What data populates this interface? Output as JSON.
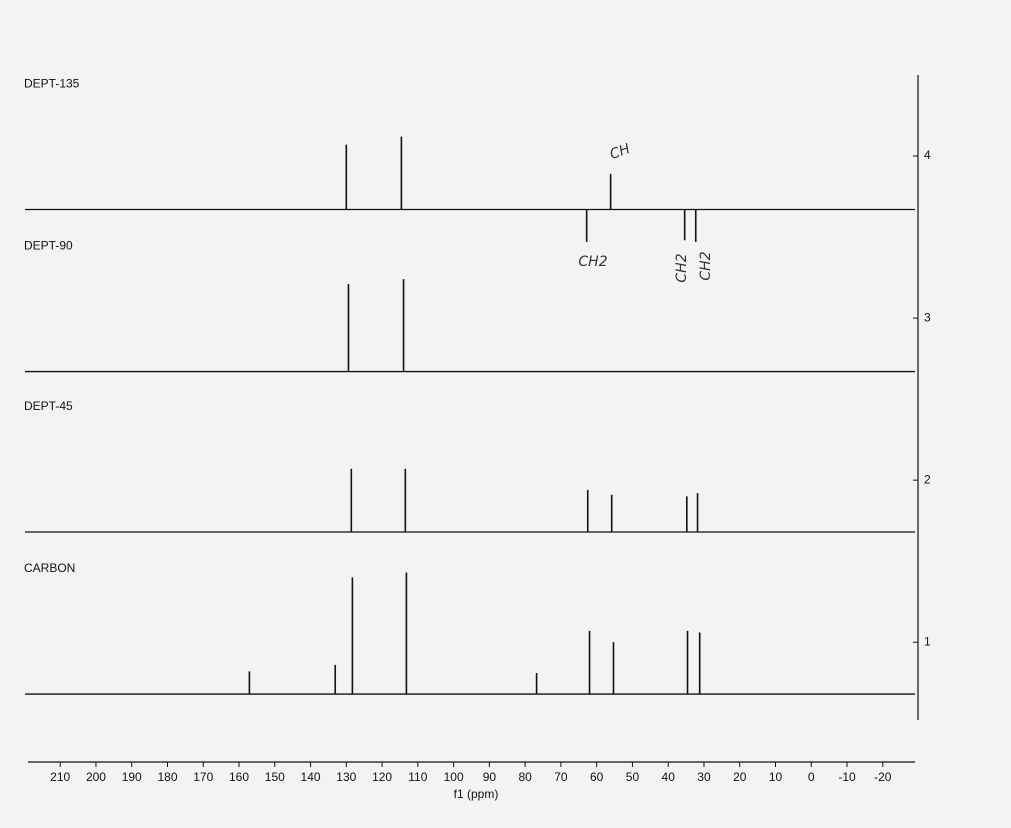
{
  "chart_data": {
    "type": "spectrum",
    "x_label": "f1 (ppm)",
    "xlim": [
      219,
      -29
    ],
    "xticks": [
      210,
      200,
      190,
      180,
      170,
      160,
      150,
      140,
      130,
      120,
      110,
      100,
      90,
      80,
      70,
      60,
      50,
      40,
      30,
      20,
      10,
      0,
      -10,
      -20
    ],
    "ylim": [
      0.52,
      4.5
    ],
    "yticks": [
      1,
      2,
      3,
      4
    ],
    "color": "#111111",
    "series": [
      {
        "name": "DEPT-135",
        "baseline": 3.67,
        "x": [
          130,
          114.6,
          56.1,
          62.8,
          35.4,
          32.3
        ],
        "values": [
          4.07,
          4.12,
          3.89,
          3.47,
          3.48,
          3.47
        ]
      },
      {
        "name": "DEPT-90",
        "baseline": 2.67,
        "x": [
          129.4,
          114.0
        ],
        "values": [
          3.21,
          3.24
        ]
      },
      {
        "name": "DEPT-45",
        "baseline": 1.68,
        "x": [
          128.6,
          113.5,
          62.5,
          55.8,
          34.8,
          31.8
        ],
        "values": [
          2.07,
          2.07,
          1.94,
          1.91,
          1.9,
          1.92
        ]
      },
      {
        "name": "CARBON",
        "baseline": 0.68,
        "x": [
          157.1,
          133.1,
          128.3,
          113.2,
          76.8,
          62.0,
          55.3,
          34.6,
          31.2
        ],
        "values": [
          0.82,
          0.86,
          1.4,
          1.43,
          0.81,
          1.07,
          1.0,
          1.07,
          1.06
        ]
      }
    ],
    "annotations": [
      "CH",
      "CH2",
      "CH2",
      "CH2"
    ]
  }
}
